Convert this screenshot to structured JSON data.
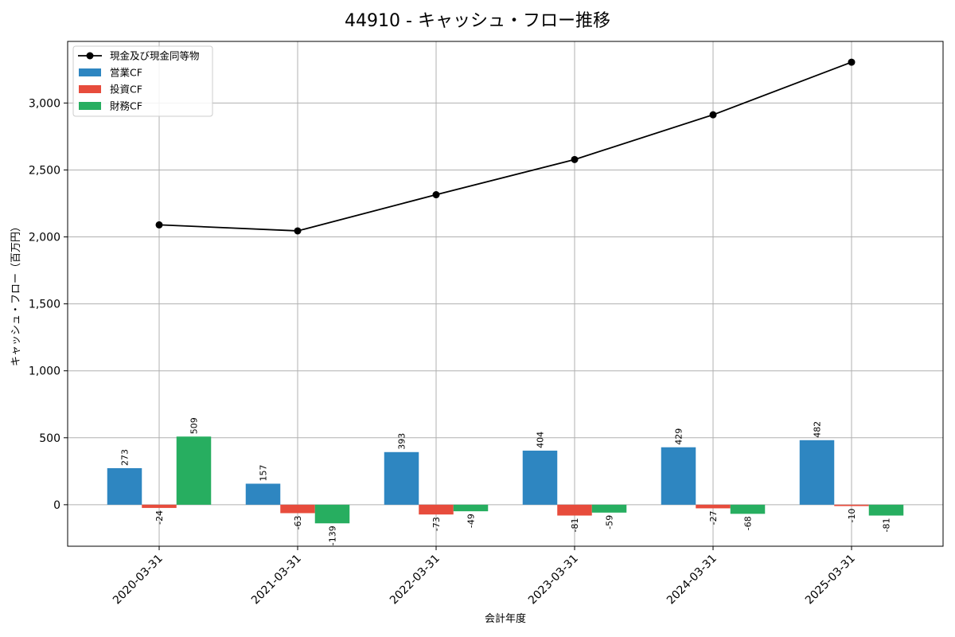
{
  "chart_data": {
    "type": "bar",
    "title": "44910 - キャッシュ・フロー推移",
    "xlabel": "会計年度",
    "ylabel": "キャッシュ・フロー（百万円）",
    "categories": [
      "2020-03-31",
      "2021-03-31",
      "2022-03-31",
      "2023-03-31",
      "2024-03-31",
      "2025-03-31"
    ],
    "series": [
      {
        "name": "営業CF",
        "kind": "bar",
        "color": "#2e86c1",
        "values": [
          273,
          157,
          393,
          404,
          429,
          482
        ]
      },
      {
        "name": "投資CF",
        "kind": "bar",
        "color": "#e74c3c",
        "values": [
          -24,
          -63,
          -73,
          -81,
          -27,
          -10
        ]
      },
      {
        "name": "財務CF",
        "kind": "bar",
        "color": "#27ae60",
        "values": [
          509,
          -139,
          -49,
          -59,
          -68,
          -81
        ]
      },
      {
        "name": "現金及び現金同等物",
        "kind": "line",
        "color": "#000000",
        "values": [
          2090,
          2045,
          2315,
          2578,
          2912,
          3305
        ]
      }
    ],
    "ylim": [
      -310,
      3460
    ],
    "yticks": [
      0,
      500,
      1000,
      1500,
      2000,
      2500,
      3000
    ],
    "ytick_labels": [
      "0",
      "500",
      "1,000",
      "1,500",
      "2,000",
      "2,500",
      "3,000"
    ],
    "grid": true,
    "legend_position": "top-left"
  }
}
